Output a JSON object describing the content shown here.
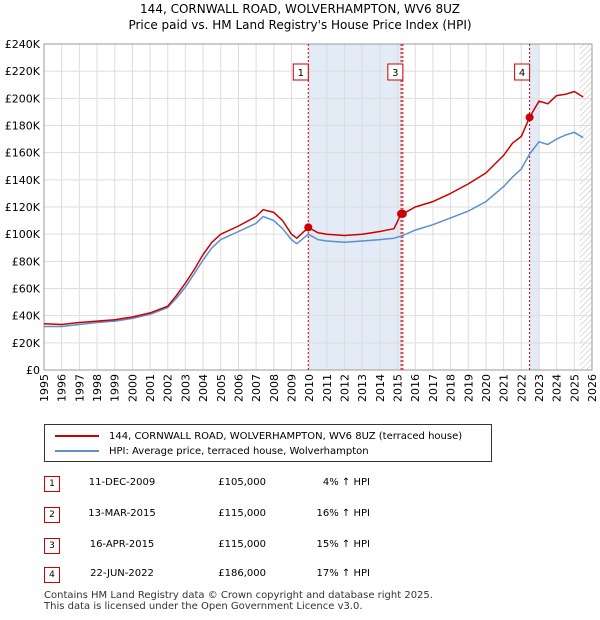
{
  "title_line1": "144, CORNWALL ROAD, WOLVERHAMPTON, WV6 8UZ",
  "title_line2": "Price paid vs. HM Land Registry's House Price Index (HPI)",
  "colors": {
    "red": "#cc0000",
    "blue": "#5b8fd0",
    "shade": "#e3ebf7",
    "grid": "#dddddd"
  },
  "chart_data": {
    "type": "line",
    "xlim": [
      1995,
      2026
    ],
    "ylim": [
      0,
      240000
    ],
    "y_ticks": [
      {
        "v": 0,
        "label": "£0"
      },
      {
        "v": 20000,
        "label": "£20K"
      },
      {
        "v": 40000,
        "label": "£40K"
      },
      {
        "v": 60000,
        "label": "£60K"
      },
      {
        "v": 80000,
        "label": "£80K"
      },
      {
        "v": 100000,
        "label": "£100K"
      },
      {
        "v": 120000,
        "label": "£120K"
      },
      {
        "v": 140000,
        "label": "£140K"
      },
      {
        "v": 160000,
        "label": "£160K"
      },
      {
        "v": 180000,
        "label": "£180K"
      },
      {
        "v": 200000,
        "label": "£200K"
      },
      {
        "v": 220000,
        "label": "£220K"
      },
      {
        "v": 240000,
        "label": "£240K"
      }
    ],
    "x_ticks": [
      "1995",
      "1996",
      "1997",
      "1998",
      "1999",
      "2000",
      "2001",
      "2002",
      "2003",
      "2004",
      "2005",
      "2006",
      "2007",
      "2008",
      "2009",
      "2010",
      "2011",
      "2012",
      "2013",
      "2014",
      "2015",
      "2016",
      "2017",
      "2018",
      "2019",
      "2020",
      "2021",
      "2022",
      "2023",
      "2024",
      "2025",
      "2026"
    ],
    "series": [
      {
        "name": "144, CORNWALL ROAD, WOLVERHAMPTON, WV6 8UZ (terraced house)",
        "color": "#cc0000",
        "points": [
          [
            1995.0,
            34000
          ],
          [
            1996.0,
            33500
          ],
          [
            1997.0,
            35000
          ],
          [
            1998.0,
            36000
          ],
          [
            1999.0,
            37000
          ],
          [
            2000.0,
            39000
          ],
          [
            2001.0,
            42000
          ],
          [
            2002.0,
            47000
          ],
          [
            2002.5,
            55000
          ],
          [
            2003.0,
            64000
          ],
          [
            2003.5,
            74000
          ],
          [
            2004.0,
            85000
          ],
          [
            2004.5,
            94000
          ],
          [
            2005.0,
            100000
          ],
          [
            2006.0,
            106000
          ],
          [
            2007.0,
            113000
          ],
          [
            2007.4,
            118000
          ],
          [
            2008.0,
            116000
          ],
          [
            2008.5,
            110000
          ],
          [
            2009.0,
            100000
          ],
          [
            2009.3,
            97000
          ],
          [
            2009.95,
            105000
          ],
          [
            2010.5,
            101000
          ],
          [
            2011.0,
            100000
          ],
          [
            2012.0,
            99000
          ],
          [
            2013.0,
            100000
          ],
          [
            2014.0,
            102000
          ],
          [
            2014.8,
            104000
          ],
          [
            2015.2,
            115000
          ],
          [
            2015.3,
            115000
          ],
          [
            2016.0,
            120000
          ],
          [
            2017.0,
            124000
          ],
          [
            2018.0,
            130000
          ],
          [
            2019.0,
            137000
          ],
          [
            2020.0,
            145000
          ],
          [
            2021.0,
            158000
          ],
          [
            2021.5,
            167000
          ],
          [
            2022.0,
            172000
          ],
          [
            2022.47,
            186000
          ],
          [
            2023.0,
            198000
          ],
          [
            2023.5,
            196000
          ],
          [
            2024.0,
            202000
          ],
          [
            2024.5,
            203000
          ],
          [
            2025.0,
            205000
          ],
          [
            2025.5,
            201000
          ]
        ]
      },
      {
        "name": "HPI: Average price, terraced house, Wolverhampton",
        "color": "#5b8fd0",
        "points": [
          [
            1995.0,
            32000
          ],
          [
            1996.0,
            32000
          ],
          [
            1997.0,
            33500
          ],
          [
            1998.0,
            35000
          ],
          [
            1999.0,
            36000
          ],
          [
            2000.0,
            38000
          ],
          [
            2001.0,
            41000
          ],
          [
            2002.0,
            46000
          ],
          [
            2002.5,
            53000
          ],
          [
            2003.0,
            61000
          ],
          [
            2003.5,
            71000
          ],
          [
            2004.0,
            81000
          ],
          [
            2004.5,
            90000
          ],
          [
            2005.0,
            96000
          ],
          [
            2006.0,
            102000
          ],
          [
            2007.0,
            108000
          ],
          [
            2007.4,
            113000
          ],
          [
            2008.0,
            110000
          ],
          [
            2008.5,
            104000
          ],
          [
            2009.0,
            96000
          ],
          [
            2009.3,
            93000
          ],
          [
            2009.95,
            100000
          ],
          [
            2010.5,
            96000
          ],
          [
            2011.0,
            95000
          ],
          [
            2012.0,
            94000
          ],
          [
            2013.0,
            95000
          ],
          [
            2014.0,
            96000
          ],
          [
            2014.8,
            97000
          ],
          [
            2015.3,
            99000
          ],
          [
            2016.0,
            103000
          ],
          [
            2017.0,
            107000
          ],
          [
            2018.0,
            112000
          ],
          [
            2019.0,
            117000
          ],
          [
            2020.0,
            124000
          ],
          [
            2021.0,
            135000
          ],
          [
            2021.5,
            142000
          ],
          [
            2022.0,
            148000
          ],
          [
            2022.47,
            159000
          ],
          [
            2023.0,
            168000
          ],
          [
            2023.5,
            166000
          ],
          [
            2024.0,
            170000
          ],
          [
            2024.5,
            173000
          ],
          [
            2025.0,
            175000
          ],
          [
            2025.5,
            171000
          ]
        ]
      }
    ],
    "markers": [
      {
        "label": "1",
        "x": 2009.95,
        "y": 105000
      },
      {
        "label": "2",
        "x": 2015.2,
        "y": 115000
      },
      {
        "label": "3",
        "x": 2015.3,
        "y": 115000
      },
      {
        "label": "4",
        "x": 2022.47,
        "y": 186000
      }
    ],
    "marker_badges": [
      "1",
      "3",
      "4"
    ],
    "shaded_regions": [
      [
        2009.95,
        2015.3
      ],
      [
        2022.47,
        2023.05
      ]
    ],
    "future_hatch_from": 2025.3
  },
  "legend": {
    "red": "144, CORNWALL ROAD, WOLVERHAMPTON, WV6 8UZ (terraced house)",
    "blue": "HPI: Average price, terraced house, Wolverhampton"
  },
  "transactions": [
    {
      "num": "1",
      "date": "11-DEC-2009",
      "price": "£105,000",
      "hpi": "4% ↑ HPI"
    },
    {
      "num": "2",
      "date": "13-MAR-2015",
      "price": "£115,000",
      "hpi": "16% ↑ HPI"
    },
    {
      "num": "3",
      "date": "16-APR-2015",
      "price": "£115,000",
      "hpi": "15% ↑ HPI"
    },
    {
      "num": "4",
      "date": "22-JUN-2022",
      "price": "£186,000",
      "hpi": "17% ↑ HPI"
    }
  ],
  "footer": {
    "line1": "Contains HM Land Registry data © Crown copyright and database right 2025.",
    "line2": "This data is licensed under the Open Government Licence v3.0."
  }
}
